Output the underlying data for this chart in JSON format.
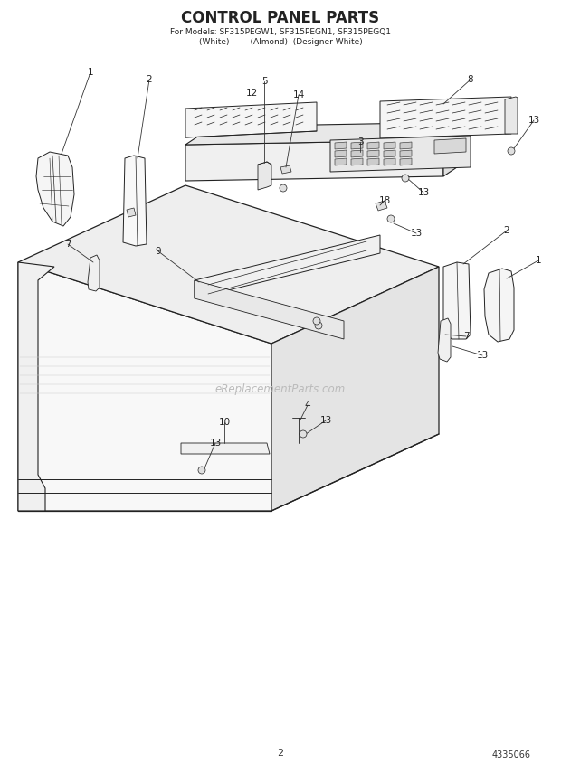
{
  "title_line1": "CONTROL PANEL PARTS",
  "title_line2": "For Models: SF315PEGW1, SF315PEGN1, SF315PEGQ1",
  "title_line3": "(White)        (Almond)  (Designer White)",
  "page_number": "2",
  "doc_number": "4335066",
  "watermark": "eReplacementParts.com",
  "bg": "#ffffff",
  "lc": "#222222",
  "title_font": 11,
  "sub_font": 6.5
}
